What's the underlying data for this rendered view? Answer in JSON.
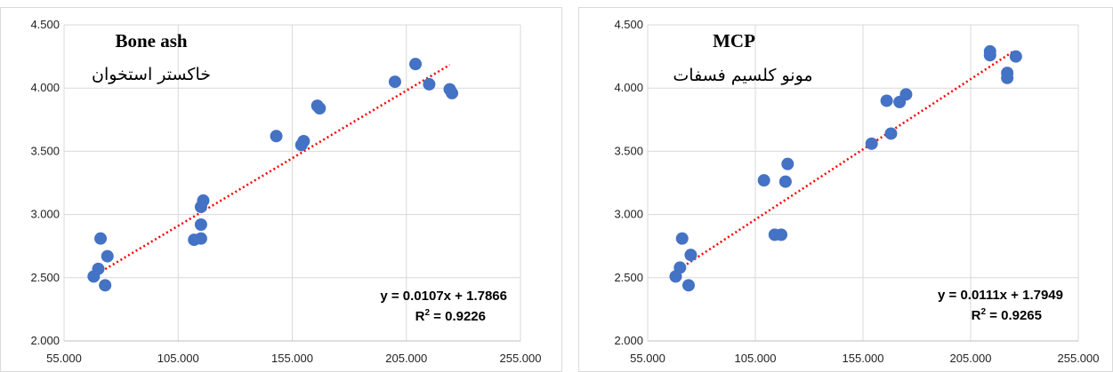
{
  "chart_data": [
    {
      "type": "scatter",
      "title": "Bone ash",
      "subtitle": "خاکستر استخوان",
      "xlim": [
        55,
        255
      ],
      "ylim": [
        2.0,
        4.5
      ],
      "x_ticks": [
        "55.000",
        "105.000",
        "155.000",
        "205.000",
        "255.000"
      ],
      "y_ticks": [
        "2.000",
        "2.500",
        "3.000",
        "3.500",
        "4.000",
        "4.500"
      ],
      "grid": true,
      "marker_color": "#4472C4",
      "trendline_color": "#FF0000",
      "trendline": {
        "slope": 0.0107,
        "intercept": 1.7866,
        "x_range": [
          68,
          224
        ]
      },
      "equation": "y = 0.0107x + 1.7866",
      "r2_prefix": "R",
      "r2_sup": "2",
      "r2_value": " = 0.9226",
      "points": [
        {
          "x": 68,
          "y": 2.51
        },
        {
          "x": 70,
          "y": 2.57
        },
        {
          "x": 71,
          "y": 2.81
        },
        {
          "x": 73,
          "y": 2.44
        },
        {
          "x": 74,
          "y": 2.67
        },
        {
          "x": 112,
          "y": 2.8
        },
        {
          "x": 115,
          "y": 2.81
        },
        {
          "x": 115,
          "y": 2.92
        },
        {
          "x": 115,
          "y": 3.06
        },
        {
          "x": 116,
          "y": 3.11
        },
        {
          "x": 148,
          "y": 3.62
        },
        {
          "x": 159,
          "y": 3.55
        },
        {
          "x": 160,
          "y": 3.58
        },
        {
          "x": 166,
          "y": 3.86
        },
        {
          "x": 167,
          "y": 3.84
        },
        {
          "x": 200,
          "y": 4.05
        },
        {
          "x": 209,
          "y": 4.19
        },
        {
          "x": 215,
          "y": 4.03
        },
        {
          "x": 224,
          "y": 3.99
        },
        {
          "x": 225,
          "y": 3.96
        }
      ]
    },
    {
      "type": "scatter",
      "title": "MCP",
      "subtitle": "مونو کلسیم فسفات",
      "xlim": [
        55,
        255
      ],
      "ylim": [
        2.0,
        4.5
      ],
      "x_ticks": [
        "55.000",
        "105.000",
        "155.000",
        "205.000",
        "255.000"
      ],
      "y_ticks": [
        "2.000",
        "2.500",
        "3.000",
        "3.500",
        "4.000",
        "4.500"
      ],
      "grid": true,
      "marker_color": "#4472C4",
      "trendline_color": "#FF0000",
      "trendline": {
        "slope": 0.0111,
        "intercept": 1.7949,
        "x_range": [
          68,
          225
        ]
      },
      "equation": "y = 0.0111x + 1.7949",
      "r2_prefix": "R",
      "r2_sup": "2",
      "r2_value": " = 0.9265",
      "points": [
        {
          "x": 68,
          "y": 2.51
        },
        {
          "x": 70,
          "y": 2.58
        },
        {
          "x": 71,
          "y": 2.81
        },
        {
          "x": 74,
          "y": 2.44
        },
        {
          "x": 75,
          "y": 2.68
        },
        {
          "x": 109,
          "y": 3.27
        },
        {
          "x": 114,
          "y": 2.84
        },
        {
          "x": 117,
          "y": 2.84
        },
        {
          "x": 119,
          "y": 3.26
        },
        {
          "x": 120,
          "y": 3.4
        },
        {
          "x": 159,
          "y": 3.56
        },
        {
          "x": 166,
          "y": 3.9
        },
        {
          "x": 168,
          "y": 3.64
        },
        {
          "x": 172,
          "y": 3.89
        },
        {
          "x": 175,
          "y": 3.95
        },
        {
          "x": 214,
          "y": 4.29
        },
        {
          "x": 214,
          "y": 4.26
        },
        {
          "x": 222,
          "y": 4.12
        },
        {
          "x": 222,
          "y": 4.08
        },
        {
          "x": 226,
          "y": 4.25
        }
      ]
    }
  ]
}
